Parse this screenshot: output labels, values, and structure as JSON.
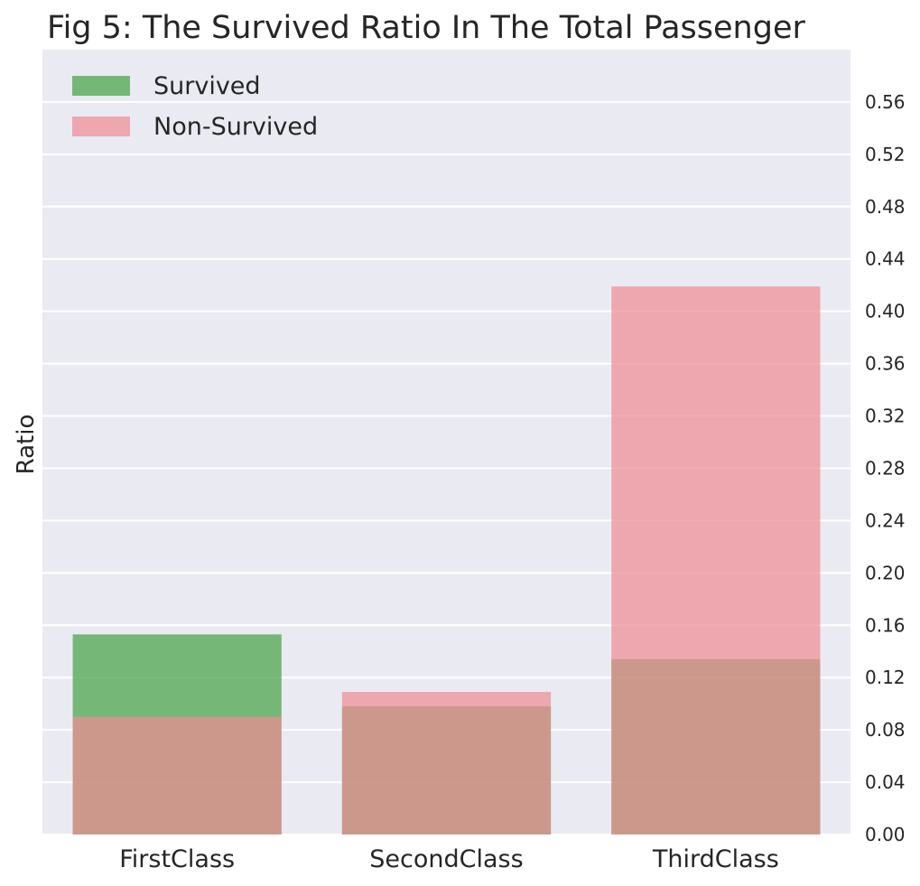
{
  "chart_data": {
    "type": "bar",
    "title": "Fig 5: The Survived Ratio In The Total Passenger",
    "xlabel": "",
    "ylabel": "Ratio",
    "categories": [
      "FirstClass",
      "SecondClass",
      "ThirdClass"
    ],
    "series": [
      {
        "name": "Survived",
        "values": [
          0.153,
          0.098,
          0.134
        ],
        "color": "#4ca64c"
      },
      {
        "name": "Non-Survived",
        "values": [
          0.09,
          0.109,
          0.419
        ],
        "color": "#f08c94"
      }
    ],
    "overlay": true,
    "ylim": [
      0,
      0.6
    ],
    "yticks": [
      0.0,
      0.04,
      0.08,
      0.12,
      0.16,
      0.2,
      0.24,
      0.28,
      0.32,
      0.36,
      0.4,
      0.44,
      0.48,
      0.52,
      0.56
    ],
    "ytick_labels": [
      "0.00",
      "0.04",
      "0.08",
      "0.12",
      "0.16",
      "0.20",
      "0.24",
      "0.28",
      "0.32",
      "0.36",
      "0.40",
      "0.44",
      "0.48",
      "0.52",
      "0.56"
    ],
    "y_axis_side": "right",
    "grid": true,
    "legend_position": "top-left",
    "background_color": "#eaeaf2"
  }
}
